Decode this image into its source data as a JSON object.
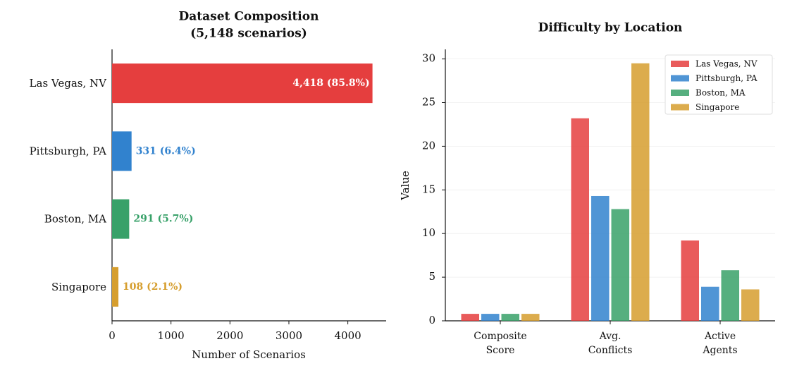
{
  "chart_data": [
    {
      "type": "hbar",
      "title": "Dataset Composition",
      "subtitle": "(5,148 scenarios)",
      "categories": [
        "Las Vegas, NV",
        "Pittsburgh, PA",
        "Boston, MA",
        "Singapore"
      ],
      "values": [
        4418,
        331,
        291,
        108
      ],
      "value_labels": [
        "4,418 (85.8%)",
        "331 (6.4%)",
        "291 (5.7%)",
        "108 (2.1%)"
      ],
      "colors": [
        "#e53e3e",
        "#3182ce",
        "#38a169",
        "#d69e2e"
      ],
      "xlim": [
        0,
        4650
      ],
      "xticks": [
        0,
        1000,
        2000,
        3000,
        4000
      ],
      "xlabel": "Number of Scenarios"
    },
    {
      "type": "grouped_bar",
      "title": "Difficulty by Location",
      "categories": [
        "Composite Score",
        "Avg. Conflicts",
        "Active Agents"
      ],
      "series": [
        {
          "name": "Las Vegas, NV",
          "color": "#e53e3e",
          "values": [
            0.8,
            23.2,
            9.2
          ]
        },
        {
          "name": "Pittsburgh, PA",
          "color": "#3182ce",
          "values": [
            0.8,
            14.3,
            3.9
          ]
        },
        {
          "name": "Boston, MA",
          "color": "#38a169",
          "values": [
            0.8,
            12.8,
            5.8
          ]
        },
        {
          "name": "Singapore",
          "color": "#d69e2e",
          "values": [
            0.8,
            29.5,
            3.6
          ]
        }
      ],
      "ylim": [
        0,
        31.1
      ],
      "yticks": [
        0,
        5,
        10,
        15,
        20,
        25,
        30
      ],
      "ylabel": "Value",
      "grid": true,
      "legend": "upper right"
    }
  ]
}
